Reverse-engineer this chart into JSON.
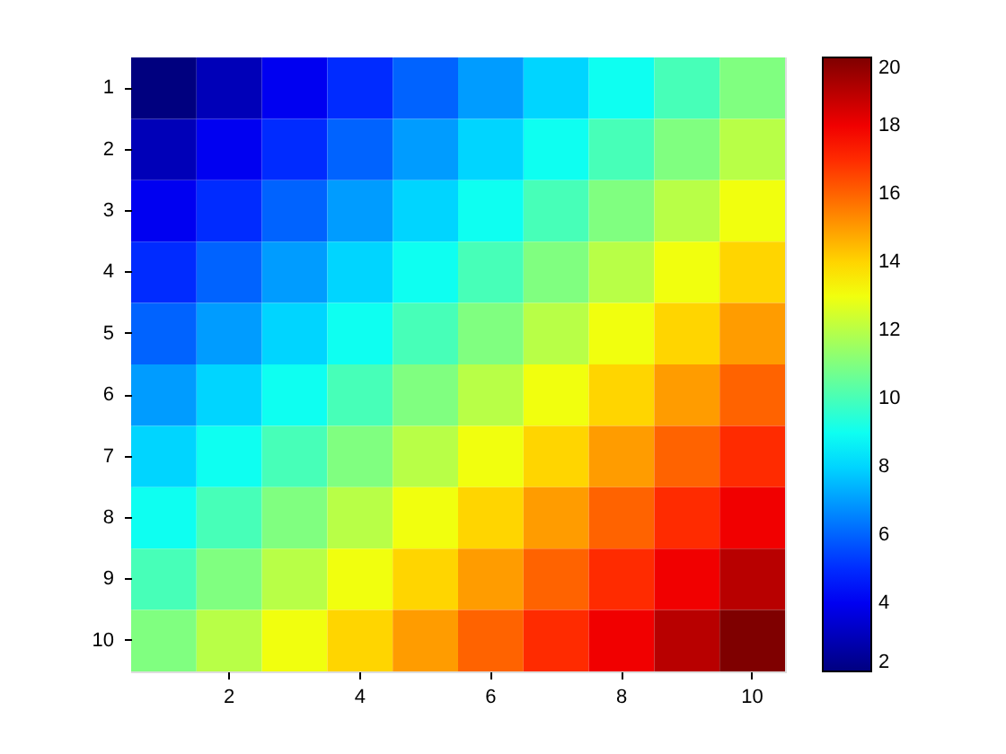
{
  "chart_data": {
    "type": "heatmap",
    "categories": [
      null,
      "2",
      null,
      "4",
      null,
      "6",
      null,
      "8",
      null,
      "10"
    ],
    "y_categories": [
      "1",
      "2",
      "3",
      "4",
      "5",
      "6",
      "7",
      "8",
      "9",
      "10"
    ],
    "cells": [
      [
        2,
        3,
        4,
        5,
        6,
        7,
        8,
        9,
        10,
        11
      ],
      [
        3,
        4,
        5,
        6,
        7,
        8,
        9,
        10,
        11,
        12
      ],
      [
        4,
        5,
        6,
        7,
        8,
        9,
        10,
        11,
        12,
        13
      ],
      [
        5,
        6,
        7,
        8,
        9,
        10,
        11,
        12,
        13,
        14
      ],
      [
        6,
        7,
        8,
        9,
        10,
        11,
        12,
        13,
        14,
        15
      ],
      [
        7,
        8,
        9,
        10,
        11,
        12,
        13,
        14,
        15,
        16
      ],
      [
        8,
        9,
        10,
        11,
        12,
        13,
        14,
        15,
        16,
        17
      ],
      [
        9,
        10,
        11,
        12,
        13,
        14,
        15,
        16,
        17,
        18
      ],
      [
        10,
        11,
        12,
        13,
        14,
        15,
        16,
        17,
        18,
        19
      ],
      [
        11,
        12,
        13,
        14,
        15,
        16,
        17,
        18,
        19,
        20
      ]
    ],
    "clim": [
      2,
      20
    ],
    "cticks": [
      2,
      4,
      6,
      8,
      10,
      12,
      14,
      16,
      18,
      20
    ]
  }
}
